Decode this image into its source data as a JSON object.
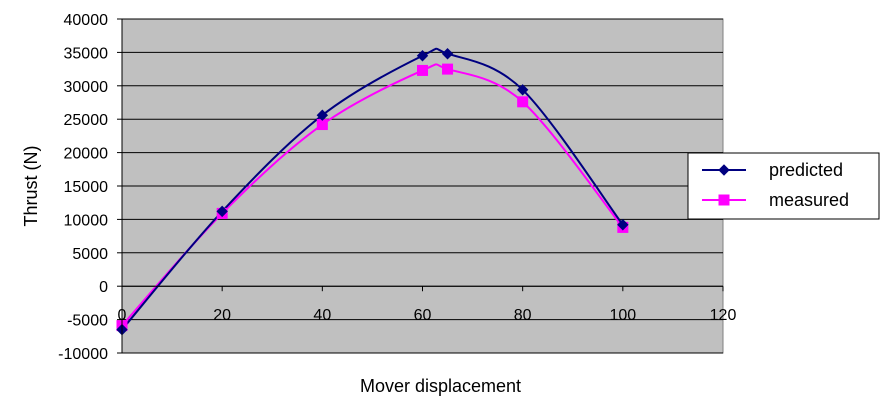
{
  "chart_data": {
    "type": "line",
    "title": "",
    "xlabel": "Mover displacement",
    "ylabel": "Thrust (N)",
    "xlim": [
      0,
      120
    ],
    "ylim": [
      -10000,
      40000
    ],
    "x_ticks": [
      "0",
      "20",
      "40",
      "60",
      "80",
      "100",
      "120"
    ],
    "y_ticks": [
      "40000",
      "35000",
      "30000",
      "25000",
      "20000",
      "15000",
      "10000",
      "5000",
      "0",
      "-5000",
      "-10000"
    ],
    "grid": "horizontal",
    "smooth": true,
    "legend_position": "right",
    "plot_background": "#c0c0c0",
    "series": [
      {
        "name": "predicted",
        "color": "#000080",
        "marker": "diamond",
        "x": [
          0,
          20,
          40,
          60,
          65,
          80,
          100
        ],
        "y": [
          -6500,
          11200,
          25600,
          34500,
          34800,
          29400,
          9200
        ]
      },
      {
        "name": "measured",
        "color": "#ff00ff",
        "marker": "square",
        "x": [
          0,
          20,
          40,
          60,
          65,
          80,
          100
        ],
        "y": [
          -5900,
          10900,
          24200,
          32300,
          32500,
          27600,
          8800
        ]
      }
    ]
  }
}
